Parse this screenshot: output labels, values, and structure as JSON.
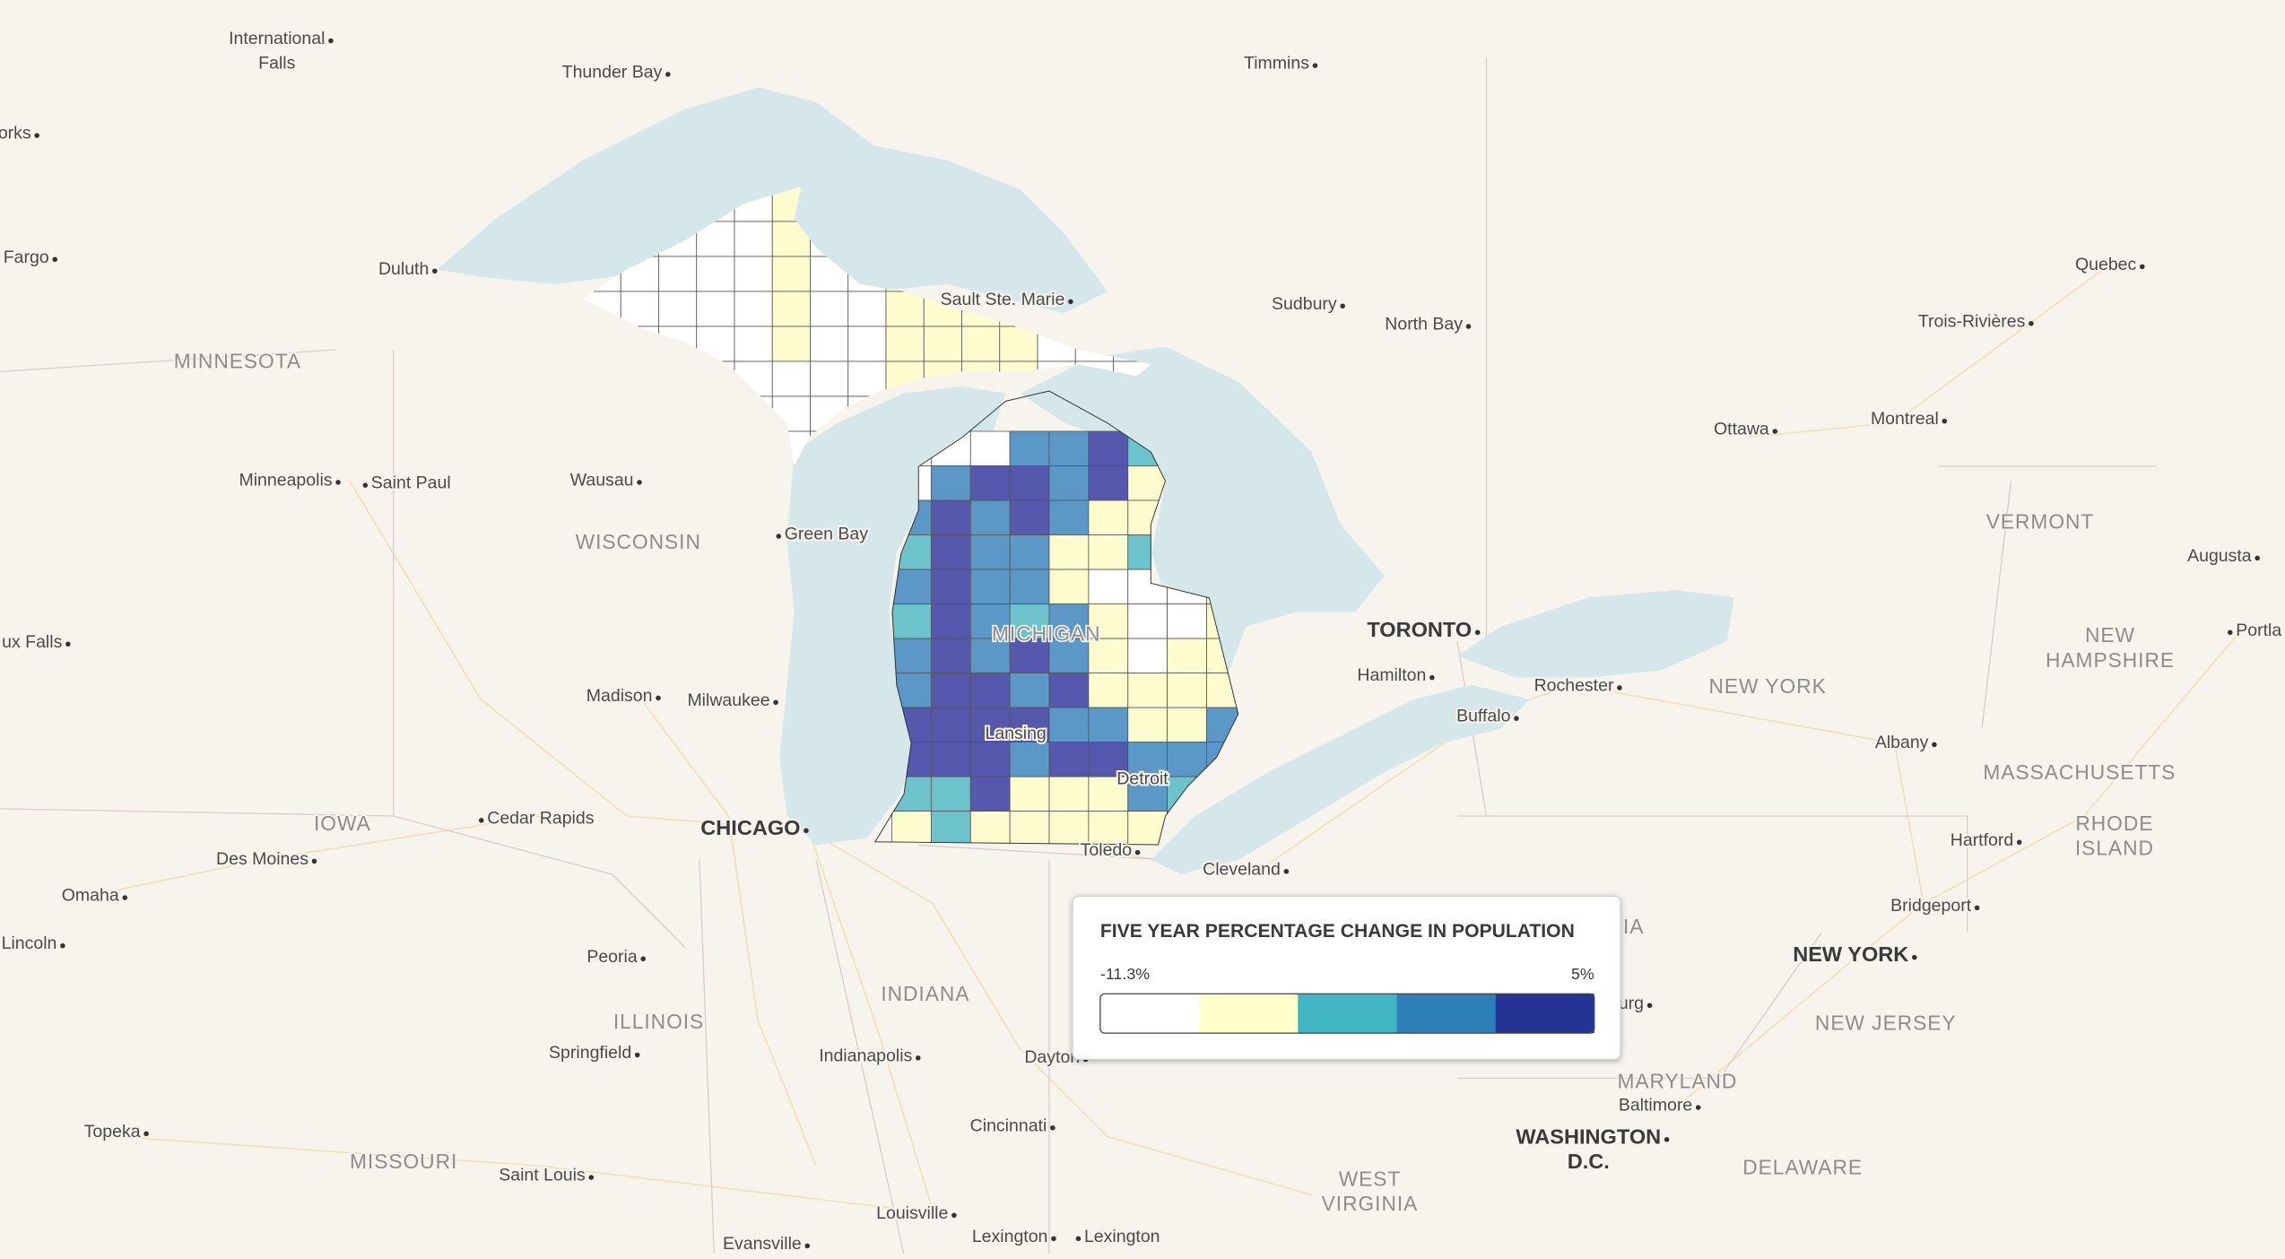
{
  "map": {
    "cities": [
      [
        "International",
        "Falls"
      ],
      "Thunder Bay",
      "Timmins",
      "orks",
      "Fargo",
      "Duluth",
      "Sault Ste. Marie",
      "Sudbury",
      "North Bay",
      "Quebec",
      "Trois-Rivières",
      "Ottawa",
      "Montreal",
      "Minneapolis",
      "Saint Paul",
      "Wausau",
      "Green Bay",
      "ux Falls",
      "Madison",
      "Milwaukee",
      "Cedar Rapids",
      "Des Moines",
      "Omaha",
      "Lincoln",
      "Peoria",
      "Springfield",
      "Indianapolis",
      "Dayton",
      "Cincinnati",
      "Topeka",
      "Saint Louis",
      "Louisville",
      "Evansville",
      "Lexington",
      "Lexington",
      "Lansing",
      "Detroit",
      "Toledo",
      "Cleveland",
      "Hamilton",
      "Rochester",
      "Buffalo",
      "Albany",
      "Hartford",
      "Bridgeport",
      "Harrisburg",
      "Baltimore",
      "Augusta",
      "Portla"
    ],
    "major_cities": [
      "CHICAGO",
      "TORONTO",
      "NEW YORK",
      [
        "WASHINGTON",
        "D.C."
      ]
    ],
    "states": [
      "MINNESOTA",
      "WISCONSIN",
      "MICHIGAN",
      "IOWA",
      "ILLINOIS",
      "INDIANA",
      "MISSOURI",
      "NEW YORK",
      "VERMONT",
      [
        "NEW",
        "HAMPSHIRE"
      ],
      "MASSACHUSETTS",
      [
        "RHODE",
        "ISLAND"
      ],
      "NEW JERSEY",
      "MARYLAND",
      "DELAWARE",
      [
        "WEST",
        "VIRGINIA"
      ],
      "PENNSYLVANIA"
    ]
  },
  "legend": {
    "title": "FIVE YEAR PERCENTAGE CHANGE IN POPULATION",
    "min_label": "-11.3%",
    "max_label": "5%",
    "colors": [
      "#ffffff",
      "#ffffcc",
      "#41b6c4",
      "#2c7fb8",
      "#253494"
    ]
  }
}
